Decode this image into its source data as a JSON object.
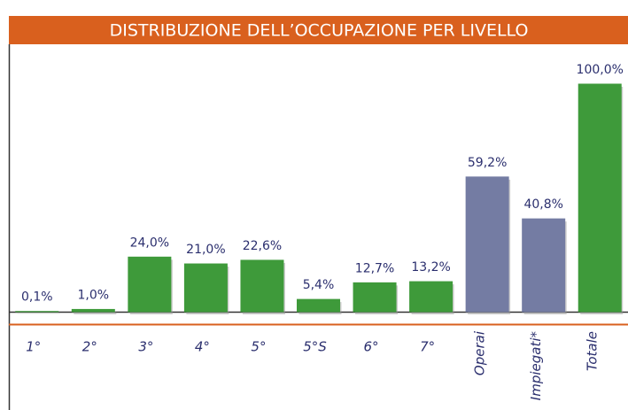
{
  "chart_data": {
    "type": "bar",
    "title": "DISTRIBUZIONE DELL’OCCUPAZIONE PER LIVELLO",
    "categories": [
      "1°",
      "2°",
      "3°",
      "4°",
      "5°",
      "5°S",
      "6°",
      "7°",
      "Operai",
      "Impiegati*",
      "Totale"
    ],
    "values": [
      0.1,
      1.0,
      24.0,
      21.0,
      22.6,
      5.4,
      12.7,
      13.2,
      59.2,
      40.8,
      100.0
    ],
    "value_labels": [
      "0,1%",
      "1,0%",
      "24,0%",
      "21,0%",
      "22,6%",
      "5,4%",
      "12,7%",
      "13,2%",
      "59,2%",
      "40,8%",
      "100,0%"
    ],
    "colors": [
      "#3e9a3a",
      "#3e9a3a",
      "#3e9a3a",
      "#3e9a3a",
      "#3e9a3a",
      "#3e9a3a",
      "#3e9a3a",
      "#3e9a3a",
      "#747ca3",
      "#747ca3",
      "#3e9a3a"
    ],
    "ylim": [
      0,
      100
    ]
  }
}
